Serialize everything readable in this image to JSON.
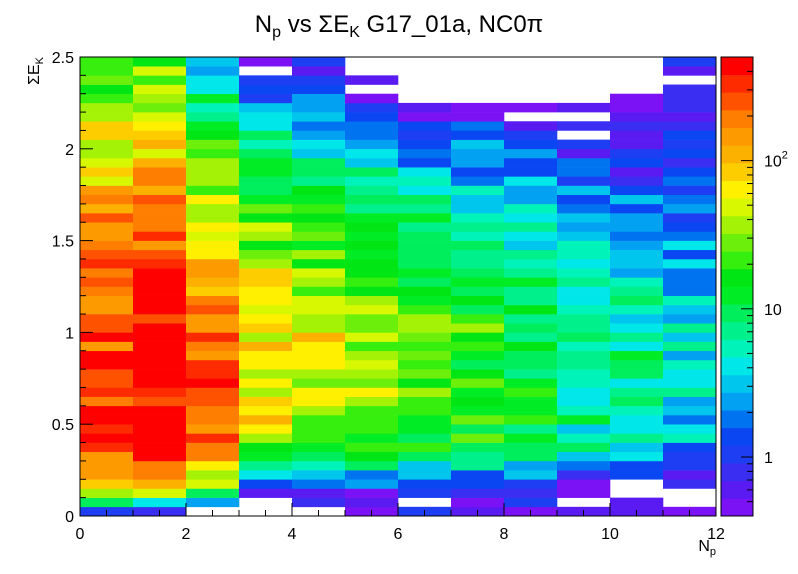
{
  "chart_data": {
    "type": "heatmap",
    "title": {
      "main": "N",
      "sub1": "p",
      "mid": " vs ΣE",
      "sub2": "K",
      "tail": " G17_01a, NC0π"
    },
    "xlabel": {
      "main": "N",
      "sub": "p"
    },
    "ylabel": {
      "main": "ΣE",
      "sub": "K"
    },
    "xlim": [
      0,
      12
    ],
    "ylim": [
      0,
      2.5
    ],
    "x_bins": 12,
    "y_bins": 50,
    "x_ticks": [
      "0",
      "2",
      "4",
      "6",
      "8",
      "10",
      "12"
    ],
    "y_ticks": [
      "0",
      "0.5",
      "1",
      "1.5",
      "2",
      "2.5"
    ],
    "color_scale": "log",
    "zlim": [
      0.4,
      500
    ],
    "colorbar_ticks": [
      {
        "value": 1,
        "label": "1"
      },
      {
        "value": 10,
        "label": "10"
      },
      {
        "value": 100,
        "label": "10",
        "sup": "2"
      }
    ],
    "columns": [
      {
        "x": [
          0,
          1
        ],
        "profile": [
          [
            0.05,
            2
          ],
          [
            0.1,
            20
          ],
          [
            0.2,
            150
          ],
          [
            0.3,
            250
          ],
          [
            0.5,
            300
          ],
          [
            0.8,
            350
          ],
          [
            1.1,
            260
          ],
          [
            1.5,
            180
          ],
          [
            1.8,
            100
          ],
          [
            2.1,
            50
          ],
          [
            2.5,
            12
          ]
        ]
      },
      {
        "x": [
          1,
          2
        ],
        "profile": [
          [
            0.05,
            0.8
          ],
          [
            0.1,
            15
          ],
          [
            0.2,
            250
          ],
          [
            0.3,
            350
          ],
          [
            0.5,
            480
          ],
          [
            0.8,
            520
          ],
          [
            1.1,
            420
          ],
          [
            1.5,
            230
          ],
          [
            1.8,
            120
          ],
          [
            2.1,
            60
          ],
          [
            2.5,
            25
          ]
        ]
      },
      {
        "x": [
          2,
          3
        ],
        "profile": [
          [
            0.05,
            0.5
          ],
          [
            0.1,
            4
          ],
          [
            0.2,
            60
          ],
          [
            0.35,
            200
          ],
          [
            0.6,
            260
          ],
          [
            1.0,
            200
          ],
          [
            1.3,
            120
          ],
          [
            1.6,
            50
          ],
          [
            2.0,
            20
          ],
          [
            2.5,
            3
          ]
        ]
      },
      {
        "x": [
          3,
          4
        ],
        "profile": [
          [
            0.05,
            0.1
          ],
          [
            0.2,
            4
          ],
          [
            0.3,
            20
          ],
          [
            0.5,
            60
          ],
          [
            1.0,
            80
          ],
          [
            1.5,
            30
          ],
          [
            2.0,
            10
          ],
          [
            2.5,
            0.3
          ]
        ]
      },
      {
        "x": [
          4,
          5
        ],
        "profile": [
          [
            0.1,
            0.5
          ],
          [
            0.2,
            3
          ],
          [
            0.3,
            12
          ],
          [
            0.6,
            50
          ],
          [
            1.0,
            60
          ],
          [
            1.5,
            20
          ],
          [
            2.0,
            5
          ],
          [
            2.5,
            0.5
          ]
        ]
      },
      {
        "x": [
          5,
          6
        ],
        "profile": [
          [
            0.1,
            0.6
          ],
          [
            0.2,
            2
          ],
          [
            0.3,
            8
          ],
          [
            0.6,
            35
          ],
          [
            1.0,
            40
          ],
          [
            1.5,
            15
          ],
          [
            2.0,
            4
          ],
          [
            2.5,
            0.2
          ]
        ]
      },
      {
        "x": [
          6,
          7
        ],
        "profile": [
          [
            0.1,
            0.6
          ],
          [
            0.2,
            1.5
          ],
          [
            0.3,
            8
          ],
          [
            0.6,
            25
          ],
          [
            1.0,
            25
          ],
          [
            1.5,
            12
          ],
          [
            2.0,
            2
          ],
          [
            2.5,
            0.1
          ]
        ]
      },
      {
        "x": [
          7,
          8
        ],
        "profile": [
          [
            0.15,
            0.7
          ],
          [
            0.25,
            4
          ],
          [
            0.4,
            15
          ],
          [
            0.7,
            18
          ],
          [
            1.0,
            20
          ],
          [
            1.5,
            8
          ],
          [
            2.0,
            2
          ],
          [
            2.5,
            0.1
          ]
        ]
      },
      {
        "x": [
          8,
          9
        ],
        "profile": [
          [
            0.15,
            0.6
          ],
          [
            0.25,
            3
          ],
          [
            0.4,
            12
          ],
          [
            0.7,
            15
          ],
          [
            1.0,
            12
          ],
          [
            1.5,
            6
          ],
          [
            2.0,
            1.5
          ],
          [
            2.5,
            0.1
          ]
        ]
      },
      {
        "x": [
          9,
          10
        ],
        "profile": [
          [
            0.15,
            0.5
          ],
          [
            0.25,
            2
          ],
          [
            0.4,
            6
          ],
          [
            0.7,
            8
          ],
          [
            1.0,
            8
          ],
          [
            1.5,
            4
          ],
          [
            2.0,
            0.8
          ],
          [
            2.5,
            0.1
          ]
        ]
      },
      {
        "x": [
          10,
          11
        ],
        "profile": [
          [
            0.15,
            0.5
          ],
          [
            0.25,
            1.5
          ],
          [
            0.4,
            5
          ],
          [
            0.7,
            7
          ],
          [
            1.0,
            6
          ],
          [
            1.5,
            3
          ],
          [
            2.0,
            0.8
          ],
          [
            2.5,
            0.1
          ]
        ]
      },
      {
        "x": [
          11,
          12
        ],
        "profile": [
          [
            0.15,
            0.4
          ],
          [
            0.25,
            1.2
          ],
          [
            0.4,
            3
          ],
          [
            0.7,
            5
          ],
          [
            1.0,
            4
          ],
          [
            1.5,
            2
          ],
          [
            2.0,
            0.8
          ],
          [
            2.5,
            0.5
          ]
        ]
      }
    ],
    "palette": [
      "#7b12f5",
      "#5a1bf3",
      "#3a2ef2",
      "#1e3ef3",
      "#0a47f3",
      "#0074f0",
      "#03a1f2",
      "#00c6ee",
      "#00e7ea",
      "#00f3b8",
      "#00f08c",
      "#00ee5c",
      "#00ec24",
      "#00e614",
      "#37ef0e",
      "#6cf00b",
      "#a4f206",
      "#d8f802",
      "#fff000",
      "#fdcd00",
      "#fcb000",
      "#fc9a00",
      "#fd7e00",
      "#fe5200",
      "#ff2b00",
      "#ff0000"
    ]
  }
}
